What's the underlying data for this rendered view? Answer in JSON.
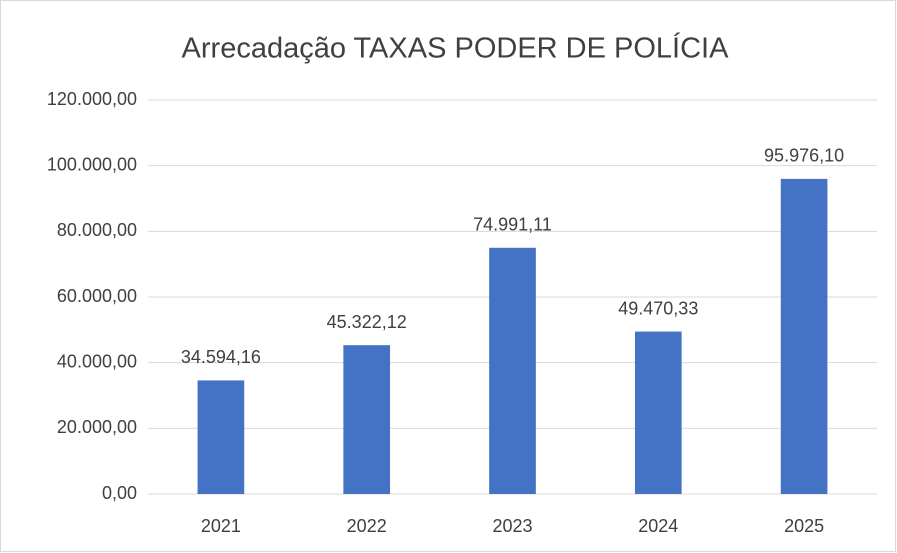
{
  "chart_data": {
    "type": "bar",
    "title": "Arrecadação TAXAS PODER DE POLÍCIA",
    "categories": [
      "2021",
      "2022",
      "2023",
      "2024",
      "2025"
    ],
    "values": [
      34594.16,
      45322.12,
      74991.11,
      49470.33,
      95976.1
    ],
    "value_labels": [
      "34.594,16",
      "45.322,12",
      "74.991,11",
      "49.470,33",
      "95.976,10"
    ],
    "color": "#4472c4",
    "ylim": [
      0,
      120000
    ],
    "yticks": [
      {
        "value": 0,
        "label": "0,00"
      },
      {
        "value": 20000,
        "label": "20.000,00"
      },
      {
        "value": 40000,
        "label": "40.000,00"
      },
      {
        "value": 60000,
        "label": "60.000,00"
      },
      {
        "value": 80000,
        "label": "80.000,00"
      },
      {
        "value": 100000,
        "label": "100.000,00"
      },
      {
        "value": 120000,
        "label": "120.000,00"
      }
    ],
    "grid": true
  }
}
